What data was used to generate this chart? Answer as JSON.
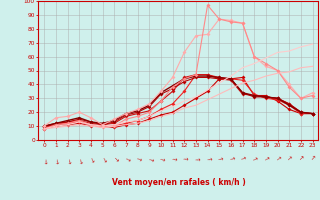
{
  "xlabel": "Vent moyen/en rafales ( km/h )",
  "bg_color": "#cff0ec",
  "grid_color": "#aaaaaa",
  "xlim": [
    -0.5,
    23.5
  ],
  "ylim": [
    0,
    100
  ],
  "xticks": [
    0,
    1,
    2,
    3,
    4,
    5,
    6,
    7,
    8,
    9,
    10,
    11,
    12,
    13,
    14,
    15,
    16,
    17,
    18,
    19,
    20,
    21,
    22,
    23
  ],
  "yticks": [
    0,
    10,
    20,
    30,
    40,
    50,
    60,
    70,
    80,
    90,
    100
  ],
  "series": [
    {
      "y": [
        8,
        10,
        11,
        12,
        10,
        10,
        9,
        11,
        12,
        15,
        18,
        20,
        25,
        30,
        35,
        44,
        44,
        45,
        32,
        32,
        28,
        22,
        19,
        19
      ],
      "color": "#cc0000",
      "lw": 0.8,
      "marker": true,
      "ms": 2.0
    },
    {
      "y": [
        9,
        11,
        12,
        13,
        11,
        10,
        10,
        12,
        14,
        17,
        22,
        26,
        35,
        47,
        47,
        45,
        44,
        43,
        33,
        30,
        29,
        25,
        19,
        19
      ],
      "color": "#ee2222",
      "lw": 0.8,
      "marker": true,
      "ms": 2.0
    },
    {
      "y": [
        10,
        11,
        13,
        14,
        12,
        11,
        12,
        17,
        19,
        21,
        28,
        35,
        45,
        47,
        47,
        44,
        43,
        33,
        32,
        31,
        30,
        26,
        20,
        19
      ],
      "color": "#cc1111",
      "lw": 0.8,
      "marker": true,
      "ms": 2.0
    },
    {
      "y": [
        10,
        12,
        13,
        15,
        13,
        11,
        13,
        18,
        20,
        24,
        33,
        37,
        42,
        45,
        45,
        44,
        44,
        34,
        31,
        31,
        30,
        26,
        20,
        19
      ],
      "color": "#bb0000",
      "lw": 0.8,
      "marker": true,
      "ms": 2.0
    },
    {
      "y": [
        10,
        12,
        14,
        16,
        13,
        12,
        14,
        19,
        21,
        25,
        34,
        39,
        44,
        46,
        46,
        45,
        44,
        34,
        32,
        31,
        30,
        25,
        20,
        19
      ],
      "color": "#880000",
      "lw": 1.0,
      "marker": true,
      "ms": 2.0
    },
    {
      "y": [
        10,
        16,
        17,
        20,
        16,
        11,
        15,
        19,
        22,
        26,
        35,
        45,
        63,
        75,
        76,
        87,
        86,
        84,
        60,
        53,
        50,
        40,
        30,
        34
      ],
      "color": "#ffaaaa",
      "lw": 0.8,
      "marker": true,
      "ms": 2.0
    },
    {
      "y": [
        8,
        11,
        12,
        14,
        11,
        9,
        10,
        15,
        17,
        20,
        28,
        38,
        44,
        47,
        97,
        87,
        85,
        84,
        60,
        55,
        50,
        38,
        30,
        32
      ],
      "color": "#ff8888",
      "lw": 0.8,
      "marker": true,
      "ms": 2.0
    },
    {
      "y": [
        8,
        10,
        11,
        13,
        11,
        10,
        11,
        13,
        14,
        17,
        21,
        24,
        28,
        31,
        36,
        41,
        46,
        52,
        55,
        59,
        63,
        64,
        67,
        69
      ],
      "color": "#ffcccc",
      "lw": 0.8,
      "marker": false,
      "ms": 0
    },
    {
      "y": [
        8,
        9,
        10,
        11,
        10,
        9,
        10,
        11,
        12,
        14,
        17,
        19,
        23,
        25,
        29,
        33,
        37,
        41,
        43,
        46,
        48,
        49,
        52,
        53
      ],
      "color": "#ffbbbb",
      "lw": 0.8,
      "marker": false,
      "ms": 0
    }
  ],
  "arrow_rotations": [
    -135,
    -130,
    -125,
    -120,
    -110,
    -105,
    -90,
    -75,
    -70,
    -65,
    -60,
    -55,
    -50,
    -45,
    -40,
    -35,
    -30,
    -25,
    -20,
    -15,
    -10,
    -5,
    0,
    5
  ]
}
